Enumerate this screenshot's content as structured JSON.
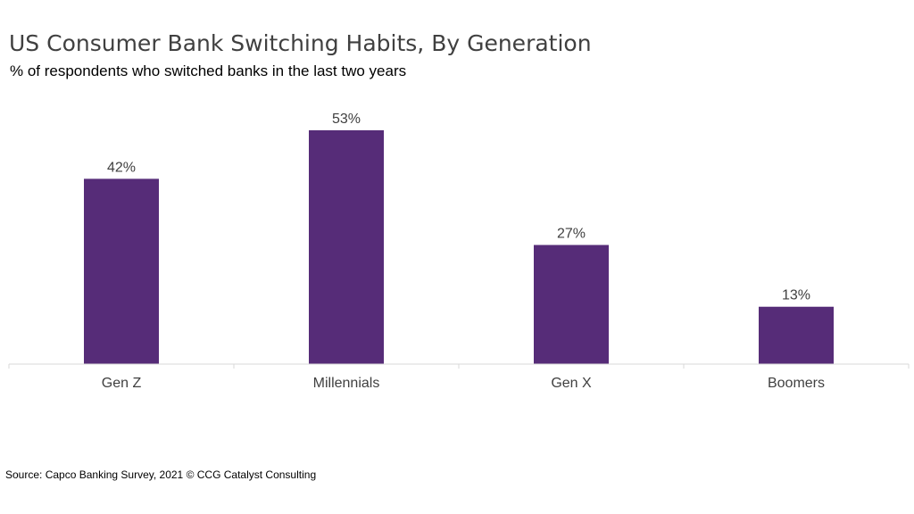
{
  "chart_data": {
    "type": "bar",
    "title": "US Consumer Bank Switching Habits, By Generation",
    "subtitle": "% of respondents who switched banks in the last two years",
    "categories": [
      "Gen Z",
      "Millennials",
      "Gen X",
      "Boomers"
    ],
    "values": [
      42,
      53,
      27,
      13
    ],
    "data_labels": [
      "42%",
      "53%",
      "27%",
      "13%"
    ],
    "xlabel": "",
    "ylabel": "",
    "ylim": [
      0,
      60
    ],
    "grid": false,
    "legend": "none",
    "bar_color": "#562C78",
    "axis_color": "#D9D9D9",
    "source": "Source: Capco Banking Survey, 2021 © CCG Catalyst Consulting"
  }
}
